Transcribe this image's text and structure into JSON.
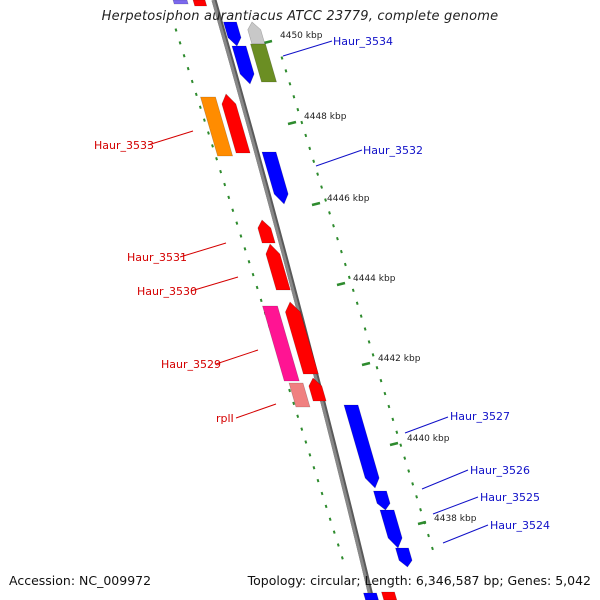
{
  "title": "Herpetosiphon aurantiacus ATCC 23779, complete genome",
  "footer": {
    "accession": "Accession: NC_009972",
    "summary": "Topology: circular; Length: 6,346,587 bp; Genes: 5,042"
  },
  "colors": {
    "backbone": "#888888",
    "tick": "#2e8b2e",
    "label_red": "#d40000",
    "label_blue": "#1010c8",
    "gene_red": "#ff0000",
    "gene_blue": "#0000ff",
    "gene_orange": "#ff8c00",
    "gene_olive": "#6b8e23",
    "gene_magenta": "#ff1493",
    "gene_pink": "#f08080",
    "gene_grey": "#c8c8c8",
    "gene_lavender": "#7b68ee"
  },
  "scale_ticks": [
    {
      "label": "4450 kbp"
    },
    {
      "label": "4448 kbp"
    },
    {
      "label": "4446 kbp"
    },
    {
      "label": "4444 kbp"
    },
    {
      "label": "4442 kbp"
    },
    {
      "label": "4440 kbp"
    },
    {
      "label": "4438 kbp"
    }
  ],
  "gene_labels": [
    {
      "label": "Haur_3534",
      "strand": "forward"
    },
    {
      "label": "Haur_3533",
      "strand": "reverse"
    },
    {
      "label": "Haur_3532",
      "strand": "forward"
    },
    {
      "label": "Haur_3531",
      "strand": "reverse"
    },
    {
      "label": "Haur_3530",
      "strand": "reverse"
    },
    {
      "label": "Haur_3529",
      "strand": "reverse"
    },
    {
      "label": "rplI",
      "strand": "reverse"
    },
    {
      "label": "Haur_3527",
      "strand": "forward"
    },
    {
      "label": "Haur_3526",
      "strand": "forward"
    },
    {
      "label": "Haur_3525",
      "strand": "forward"
    },
    {
      "label": "Haur_3524",
      "strand": "forward"
    }
  ]
}
